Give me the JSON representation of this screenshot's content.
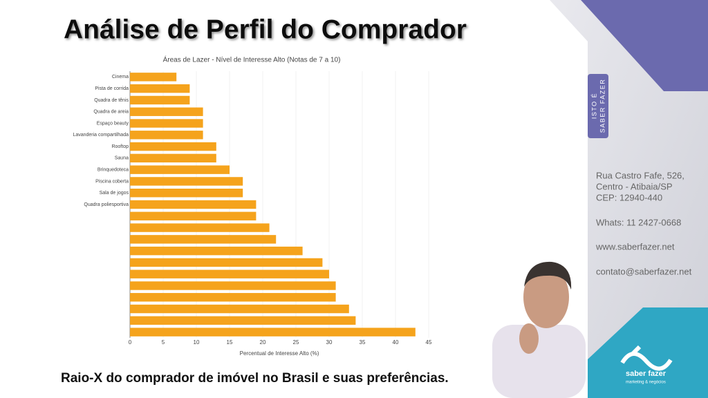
{
  "slide_title": "Análise de Perfil do Comprador",
  "caption": "Raio-X do comprador de imóvel no Brasil e suas preferências.",
  "tab": [
    "ISTO É",
    "SABER FAZER"
  ],
  "contact": [
    "Rua Castro Fafe, 526,",
    "Centro - Atibaia/SP",
    "CEP: 12940-440",
    "Whats: 11 2427-0668",
    "www.saberfazer.net",
    "contato@saberfazer.net"
  ],
  "logo": {
    "name": "saber fazer",
    "tagline": "marketing & negócios"
  },
  "chart_data": {
    "type": "hbar",
    "title": "Áreas de Lazer - Nível de Interesse Alto (Notas de 7 a 10)",
    "x_label": "Percentual de Interesse Alto (%)",
    "categories": [
      "Cinema",
      "Pista de corrida",
      "Quadra de tênis",
      "Quadra de areia",
      "Espaço beauty",
      "Lavanderia compartilhada",
      "Rooftop",
      "Sauna",
      "Brinquedoteca",
      "Piscina coberta",
      "Sala de jogos",
      "Quadra poliesportiva",
      null,
      null,
      null,
      null,
      null,
      null,
      null,
      null,
      null,
      null,
      null
    ],
    "values": [
      7,
      9,
      9,
      11,
      11,
      11,
      13,
      13,
      15,
      17,
      17,
      19,
      19,
      21,
      22,
      26,
      29,
      30,
      31,
      31,
      33,
      34,
      43
    ],
    "color": "#f5a31c",
    "xlim": [
      0,
      45
    ],
    "xticks": [
      0,
      5,
      10,
      15,
      20,
      25,
      30,
      35,
      40,
      45
    ],
    "grid": true
  }
}
